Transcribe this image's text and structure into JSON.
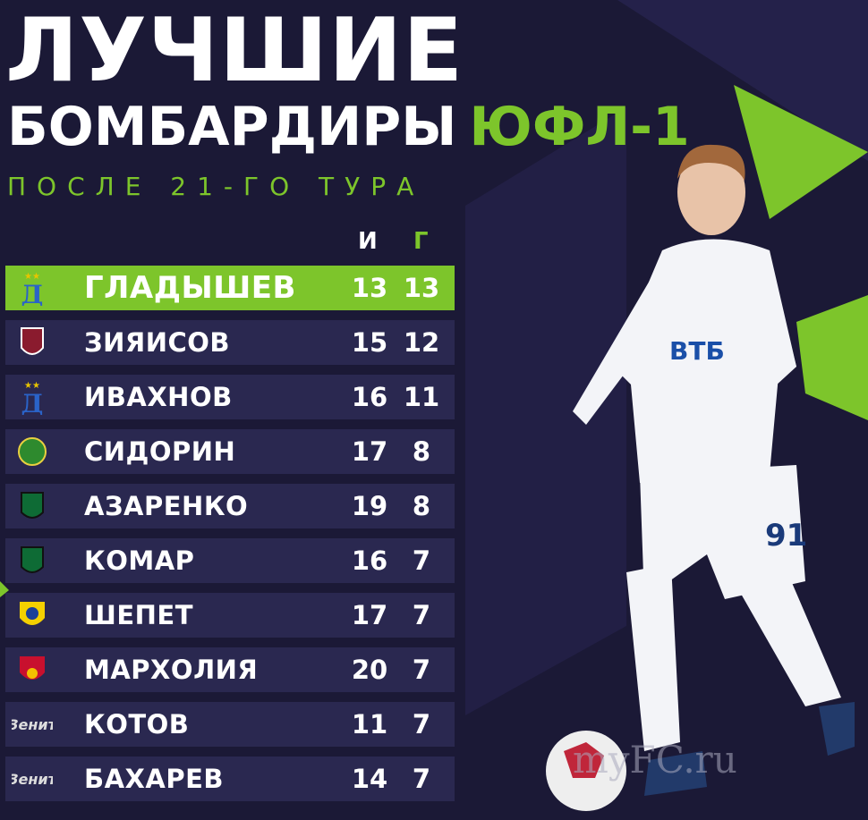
{
  "title": {
    "line1": "ЛУЧШИЕ",
    "line2": "БОМБАРДИРЫ",
    "league": "ЮФЛ-1",
    "subtitle": "ПОСЛЕ 21-ГО ТУРА"
  },
  "columns": {
    "games": "И",
    "goals": "Г"
  },
  "colors": {
    "accent": "#7dc52b",
    "background": "#1b1936",
    "row": "#2a2850"
  },
  "players": [
    {
      "name": "ГЛАДЫШЕВ",
      "club_icon": "dynamo-logo",
      "games": "13",
      "goals": "13"
    },
    {
      "name": "ЗИЯИСОВ",
      "club_icon": "rubin-logo",
      "games": "15",
      "goals": "12"
    },
    {
      "name": "ИВАХНОВ",
      "club_icon": "dynamo-logo",
      "games": "16",
      "goals": "11"
    },
    {
      "name": "СИДОРИН",
      "club_icon": "akhmat-logo",
      "games": "17",
      "goals": "8"
    },
    {
      "name": "АЗАРЕНКО",
      "club_icon": "krasnodar-logo",
      "games": "19",
      "goals": "8"
    },
    {
      "name": "КОМАР",
      "club_icon": "krasnodar-logo",
      "games": "16",
      "goals": "7"
    },
    {
      "name": "ШЕПЕТ",
      "club_icon": "rostov-logo",
      "games": "17",
      "goals": "7"
    },
    {
      "name": "МАРХОЛИЯ",
      "club_icon": "cska-logo",
      "games": "20",
      "goals": "7"
    },
    {
      "name": "КОТОВ",
      "club_icon": "zenit-logo",
      "games": "11",
      "goals": "7"
    },
    {
      "name": "БАХАРЕВ",
      "club_icon": "zenit-logo",
      "games": "14",
      "goals": "7"
    }
  ],
  "watermark": "myFC.ru",
  "jersey": {
    "sponsor": "ВТБ",
    "number": "91"
  }
}
